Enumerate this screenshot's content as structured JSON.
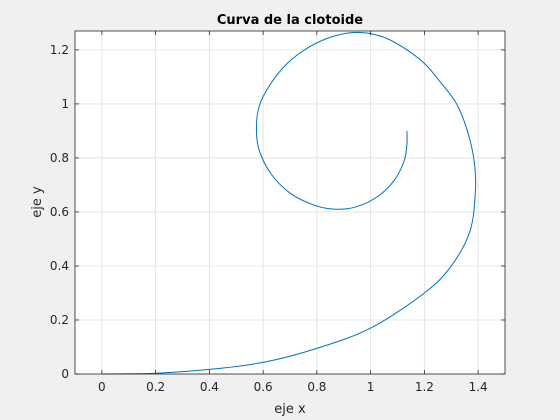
{
  "chart_data": {
    "type": "line",
    "title": "Curva de la clotoide",
    "xlabel": "eje x",
    "ylabel": "eje y",
    "xlim": [
      -0.1,
      1.5
    ],
    "ylim": [
      0,
      1.27
    ],
    "grid": true,
    "x_ticks": [
      0,
      0.2,
      0.4,
      0.6,
      0.8,
      1,
      1.2,
      1.4
    ],
    "x_tick_labels": [
      "0",
      "0.2",
      "0.4",
      "0.6",
      "0.8",
      "1",
      "1.2",
      "1.4"
    ],
    "y_ticks": [
      0,
      0.2,
      0.4,
      0.6,
      0.8,
      1,
      1.2
    ],
    "y_tick_labels": [
      "0",
      "0.2",
      "0.4",
      "0.6",
      "0.8",
      "1",
      "1.2"
    ],
    "series": [
      {
        "color": "#0072bd",
        "x": [
          0,
          0.2,
          0.4,
          0.6,
          0.8,
          1.0,
          1.2,
          1.3,
          1.37,
          1.39,
          1.385,
          1.36,
          1.32,
          1.26,
          1.2,
          1.12,
          1.04,
          0.95,
          0.86,
          0.77,
          0.69,
          0.625,
          0.585,
          0.575,
          0.585,
          0.63,
          0.7,
          0.79,
          0.87,
          0.95,
          1.03,
          1.09,
          1.125,
          1.135,
          1.135
        ],
        "y": [
          0,
          0.003,
          0.017,
          0.043,
          0.095,
          0.17,
          0.3,
          0.4,
          0.53,
          0.68,
          0.79,
          0.9,
          1.0,
          1.08,
          1.15,
          1.21,
          1.25,
          1.265,
          1.25,
          1.21,
          1.15,
          1.07,
          0.99,
          0.91,
          0.83,
          0.74,
          0.67,
          0.625,
          0.61,
          0.62,
          0.66,
          0.72,
          0.79,
          0.85,
          0.9
        ]
      }
    ]
  }
}
